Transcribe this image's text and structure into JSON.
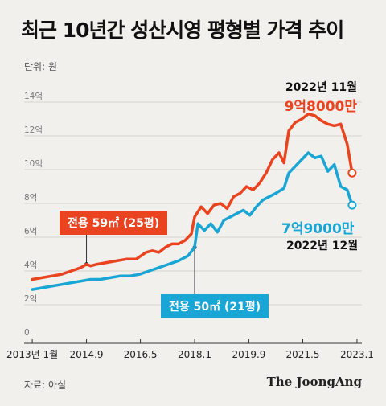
{
  "title": "최근 10년간 성산시영 평형별 가격 추이",
  "unit_label": "단위: 원",
  "source": "자료: 아실",
  "publisher": "The JoongAng",
  "annotations": {
    "nov_date": "2022년 11월",
    "nov_price": "9억8000만",
    "dec_price": "7억9000만",
    "dec_date": "2022년 12월",
    "series_59_tag": "전용 59㎡ (25평)",
    "series_50_tag": "전용 50㎡ (21평)"
  },
  "colors": {
    "series_59": "#ea4320",
    "series_50": "#1aa6d4",
    "grid": "#d6d3ce",
    "axis": "#333333"
  },
  "chart_data": {
    "type": "line",
    "ylim": [
      0,
      14
    ],
    "y_ticks": [
      0,
      2,
      4,
      6,
      8,
      10,
      12,
      14
    ],
    "y_tick_labels": [
      "0",
      "2억",
      "4억",
      "6억",
      "8억",
      "10억",
      "12억",
      "14억"
    ],
    "x_ticks": [
      2013.0,
      2014.67,
      2016.33,
      2018.0,
      2019.67,
      2021.33,
      2023.0
    ],
    "x_tick_labels": [
      "2013년 1월",
      "2014.9",
      "2016.5",
      "2018.1",
      "2019.9",
      "2021.5",
      "2023.1"
    ],
    "xlim": [
      2012.75,
      2023.15
    ],
    "grid": true,
    "series": [
      {
        "name": "전용 59㎡ (25평)",
        "x": [
          2013.0,
          2013.3,
          2013.6,
          2013.9,
          2014.2,
          2014.5,
          2014.67,
          2014.8,
          2015.0,
          2015.3,
          2015.6,
          2015.9,
          2016.2,
          2016.5,
          2016.7,
          2016.9,
          2017.1,
          2017.3,
          2017.5,
          2017.7,
          2017.9,
          2018.0,
          2018.2,
          2018.4,
          2018.6,
          2018.8,
          2019.0,
          2019.2,
          2019.4,
          2019.6,
          2019.8,
          2020.0,
          2020.2,
          2020.4,
          2020.6,
          2020.75,
          2020.9,
          2021.1,
          2021.3,
          2021.5,
          2021.7,
          2021.9,
          2022.1,
          2022.3,
          2022.5,
          2022.7,
          2022.85
        ],
        "values": [
          3.5,
          3.6,
          3.7,
          3.8,
          4.0,
          4.2,
          4.4,
          4.3,
          4.4,
          4.5,
          4.6,
          4.7,
          4.7,
          5.1,
          5.2,
          5.1,
          5.4,
          5.6,
          5.6,
          5.8,
          6.2,
          7.2,
          7.8,
          7.4,
          7.9,
          8.0,
          7.7,
          8.4,
          8.6,
          9.0,
          8.8,
          9.2,
          9.8,
          10.6,
          11.0,
          10.4,
          12.3,
          12.8,
          13.0,
          13.3,
          13.2,
          12.9,
          12.7,
          12.6,
          12.7,
          11.5,
          9.8
        ]
      },
      {
        "name": "전용 50㎡ (21평)",
        "x": [
          2013.0,
          2013.3,
          2013.6,
          2013.9,
          2014.2,
          2014.5,
          2014.8,
          2015.1,
          2015.4,
          2015.7,
          2016.0,
          2016.3,
          2016.6,
          2016.9,
          2017.2,
          2017.5,
          2017.8,
          2018.0,
          2018.1,
          2018.3,
          2018.5,
          2018.7,
          2018.9,
          2019.1,
          2019.3,
          2019.5,
          2019.7,
          2019.9,
          2020.1,
          2020.3,
          2020.5,
          2020.75,
          2020.9,
          2021.1,
          2021.3,
          2021.5,
          2021.7,
          2021.9,
          2022.1,
          2022.3,
          2022.5,
          2022.7,
          2022.85
        ],
        "values": [
          2.9,
          3.0,
          3.1,
          3.2,
          3.3,
          3.4,
          3.5,
          3.5,
          3.6,
          3.7,
          3.7,
          3.8,
          4.0,
          4.2,
          4.4,
          4.6,
          4.9,
          5.4,
          6.8,
          6.4,
          6.8,
          6.3,
          7.0,
          7.2,
          7.4,
          7.6,
          7.3,
          7.8,
          8.2,
          8.4,
          8.6,
          8.9,
          9.8,
          10.2,
          10.6,
          11.0,
          10.7,
          10.8,
          9.9,
          10.3,
          9.0,
          8.8,
          7.9
        ]
      }
    ],
    "markers": [
      {
        "series": 0,
        "x": 2022.85,
        "y": 9.8
      },
      {
        "series": 1,
        "x": 2022.85,
        "y": 7.9
      }
    ],
    "leader_points": [
      {
        "series": 0,
        "x": 2014.67,
        "y": 4.4
      },
      {
        "series": 1,
        "x": 2018.0,
        "y": 5.4
      }
    ]
  }
}
